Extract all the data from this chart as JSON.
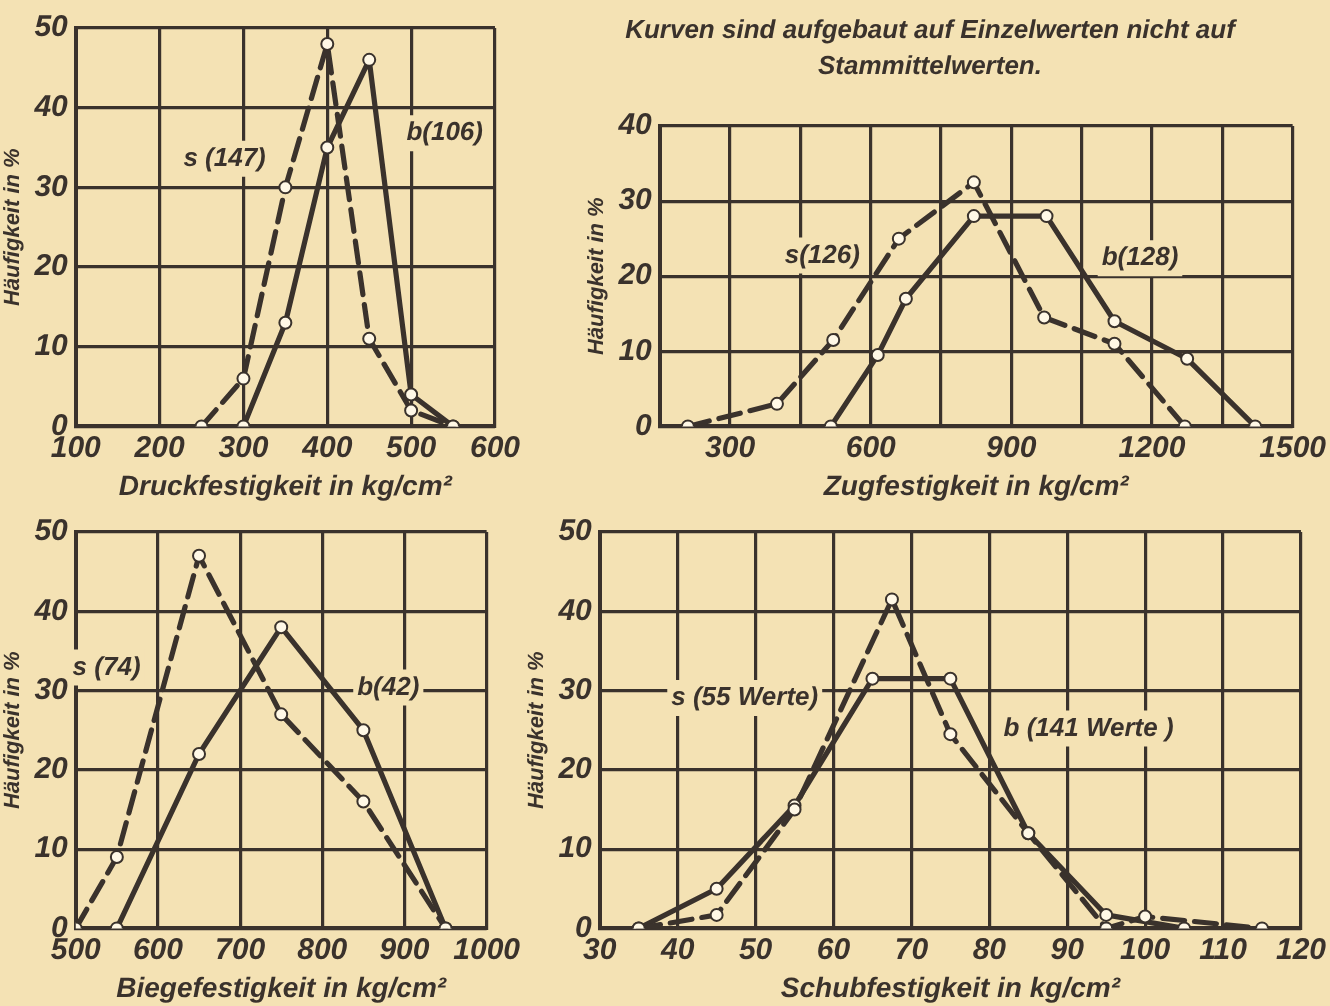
{
  "chart_data": [
    {
      "type": "line",
      "xlabel": "Druckfestigkeit in kg/cm²",
      "ylabel": "Häufigkeit in %",
      "xlim": [
        100,
        600
      ],
      "xticks": [
        100,
        200,
        300,
        400,
        500,
        600
      ],
      "ylim": [
        0,
        50
      ],
      "yticks": [
        0,
        10,
        20,
        30,
        40,
        50
      ],
      "grid": true,
      "marker": "circle",
      "series": [
        {
          "name": "s (147)",
          "color": "#3a322c",
          "line_style": "dashed",
          "x": [
            250,
            300,
            350,
            400,
            450,
            500,
            550
          ],
          "values": [
            0,
            6,
            30,
            48,
            11,
            2,
            0
          ]
        },
        {
          "name": "b(106)",
          "color": "#3a322c",
          "line_style": "solid",
          "x": [
            300,
            350,
            400,
            450,
            500,
            550
          ],
          "values": [
            0,
            13,
            35,
            46,
            4,
            0
          ]
        }
      ]
    },
    {
      "type": "line",
      "title": "Kurven sind aufgebaut auf Einzelwerten nicht auf Stammittelwerten.",
      "xlabel": "Zugfestigkeit in kg/cm²",
      "ylabel": "Häufigkeit in %",
      "xlim": [
        150,
        1500
      ],
      "xticks": [
        {
          "value": 150,
          "label": null
        },
        300,
        {
          "value": 450,
          "label": null
        },
        600,
        {
          "value": 750,
          "label": null
        },
        900,
        {
          "value": 1050,
          "label": null
        },
        1200,
        {
          "value": 1350,
          "label": null
        },
        1500
      ],
      "ylim": [
        0,
        40
      ],
      "yticks": [
        0,
        10,
        20,
        30,
        40
      ],
      "grid": true,
      "marker": "circle",
      "series": [
        {
          "name": "s(126)",
          "color": "#3a322c",
          "line_style": "dashed",
          "x": [
            210,
            400,
            520,
            660,
            820,
            970,
            1120,
            1270
          ],
          "values": [
            0,
            3,
            11.5,
            25,
            32.5,
            14.5,
            11,
            0
          ]
        },
        {
          "name": "b(128)",
          "color": "#3a322c",
          "line_style": "solid",
          "x": [
            515,
            615,
            675,
            820,
            975,
            1120,
            1275,
            1420
          ],
          "values": [
            0,
            9.5,
            17,
            28,
            28,
            14,
            9,
            0
          ]
        }
      ]
    },
    {
      "type": "line",
      "xlabel": "Biegefestigkeit in kg/cm²",
      "ylabel": "Häufigkeit in %",
      "xlim": [
        500,
        1000
      ],
      "xticks": [
        500,
        600,
        700,
        800,
        900,
        1000
      ],
      "ylim": [
        0,
        50
      ],
      "yticks": [
        0,
        10,
        20,
        30,
        40,
        50
      ],
      "grid": true,
      "marker": "circle",
      "series": [
        {
          "name": "s (74)",
          "color": "#3a322c",
          "line_style": "dashed",
          "x": [
            500,
            550,
            650,
            750,
            850,
            950
          ],
          "values": [
            0,
            9,
            47,
            27,
            16,
            0
          ]
        },
        {
          "name": "b(42)",
          "color": "#3a322c",
          "line_style": "solid",
          "x": [
            550,
            650,
            750,
            850,
            950
          ],
          "values": [
            0,
            22,
            38,
            25,
            0
          ]
        }
      ]
    },
    {
      "type": "line",
      "xlabel": "Schubfestigkeit in kg/cm²",
      "ylabel": "Häufigkeit in %",
      "xlim": [
        30,
        120
      ],
      "xticks": [
        30,
        40,
        50,
        60,
        70,
        80,
        90,
        100,
        110,
        120
      ],
      "ylim": [
        0,
        50
      ],
      "yticks": [
        0,
        10,
        20,
        30,
        40,
        50
      ],
      "grid": true,
      "marker": "circle",
      "series": [
        {
          "name": "s (55 Werte)",
          "color": "#3a322c",
          "line_style": "dashed",
          "x": [
            35,
            45,
            55,
            67.5,
            75,
            85,
            95,
            100,
            115
          ],
          "values": [
            0,
            1.7,
            15,
            41.5,
            24.5,
            12,
            0,
            1.5,
            0
          ]
        },
        {
          "name": "b (141 Werte )",
          "color": "#3a322c",
          "line_style": "solid",
          "x": [
            35,
            45,
            55,
            65,
            75,
            85,
            95,
            105
          ],
          "values": [
            0,
            5,
            15.5,
            31.5,
            31.5,
            12,
            1.7,
            0
          ]
        }
      ]
    }
  ]
}
